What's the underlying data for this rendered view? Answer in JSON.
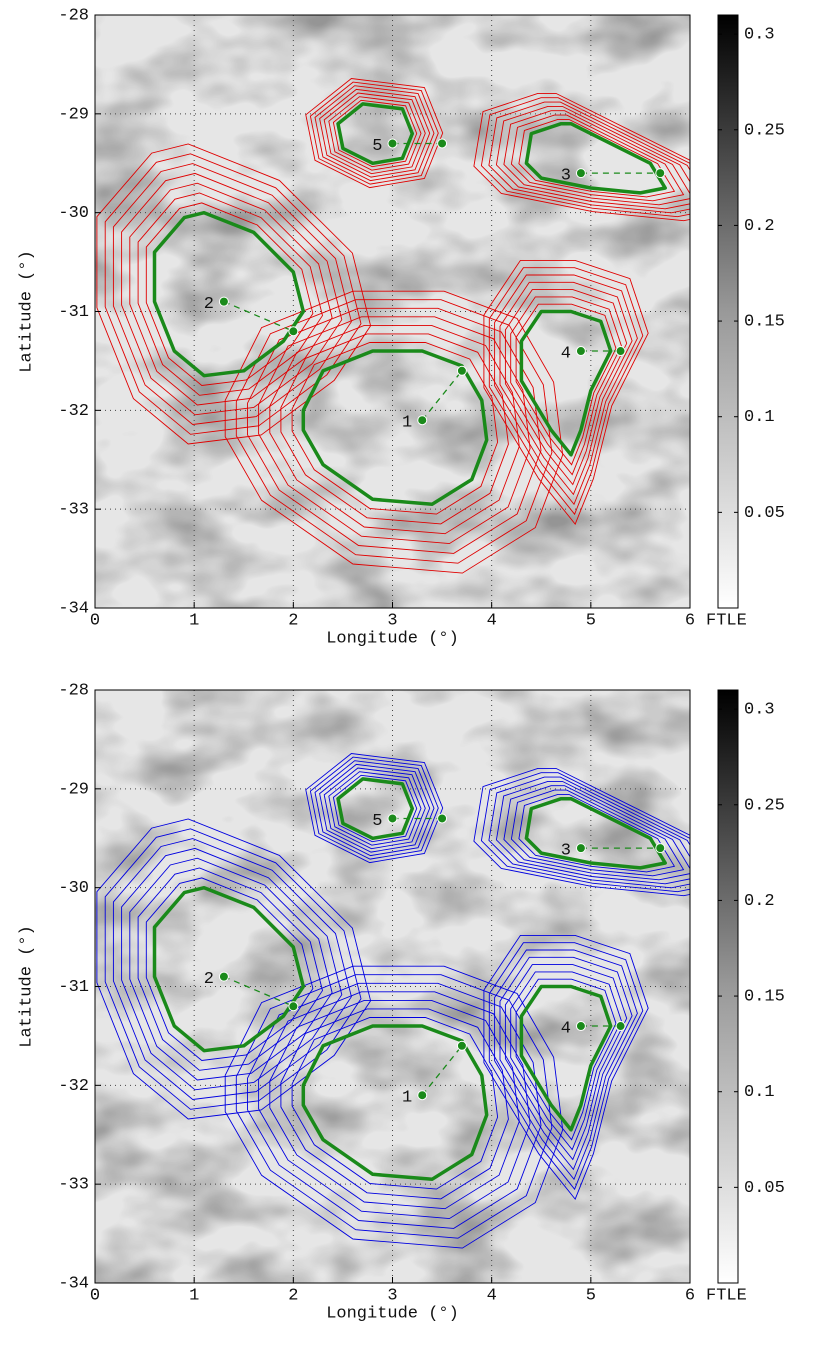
{
  "chart_data": [
    {
      "type": "ftle-map",
      "line_color": "#e00000",
      "boundary_color": "#1a8a1a",
      "x_label": "Longitude (°)",
      "y_label": "Latitude (°)",
      "colorbar_label": "FTLE",
      "xlim": [
        0,
        6
      ],
      "ylim": [
        -34,
        -28
      ],
      "xticks": [
        0,
        1,
        2,
        3,
        4,
        5,
        6
      ],
      "yticks": [
        -34,
        -33,
        -32,
        -31,
        -30,
        -29,
        -28
      ],
      "clim": [
        0,
        0.31
      ],
      "cticks": [
        0.05,
        0.1,
        0.15,
        0.2,
        0.25,
        0.3
      ],
      "grid": true,
      "series": [
        {
          "name": "1",
          "center": [
            3.3,
            -32.1
          ],
          "point": [
            3.7,
            -31.6
          ],
          "boundary_x": [
            2.1,
            2.3,
            2.8,
            3.3,
            3.7,
            3.9,
            3.95,
            3.8,
            3.4,
            2.8,
            2.3,
            2.1
          ],
          "boundary_y": [
            -32.0,
            -31.6,
            -31.4,
            -31.4,
            -31.55,
            -31.9,
            -32.3,
            -32.7,
            -32.95,
            -32.9,
            -32.55,
            -32.2
          ]
        },
        {
          "name": "2",
          "center": [
            1.3,
            -30.9
          ],
          "point": [
            2.0,
            -31.2
          ],
          "boundary_x": [
            0.6,
            0.9,
            1.1,
            1.6,
            2.0,
            2.1,
            1.9,
            1.5,
            1.1,
            0.8,
            0.6
          ],
          "boundary_y": [
            -30.4,
            -30.05,
            -30.0,
            -30.2,
            -30.6,
            -31.0,
            -31.3,
            -31.6,
            -31.65,
            -31.4,
            -30.9
          ]
        },
        {
          "name": "3",
          "center": [
            4.9,
            -29.6
          ],
          "point": [
            5.7,
            -29.6
          ],
          "boundary_x": [
            4.35,
            4.4,
            4.7,
            4.8,
            5.2,
            5.6,
            5.75,
            5.5,
            5.0,
            4.5
          ],
          "boundary_y": [
            -29.5,
            -29.2,
            -29.1,
            -29.1,
            -29.3,
            -29.5,
            -29.75,
            -29.8,
            -29.75,
            -29.65
          ]
        },
        {
          "name": "4",
          "center": [
            4.9,
            -31.4
          ],
          "point": [
            5.3,
            -31.4
          ],
          "boundary_x": [
            4.3,
            4.5,
            4.8,
            5.1,
            5.2,
            5.0,
            4.9,
            4.8,
            4.6,
            4.3
          ],
          "boundary_y": [
            -31.3,
            -31.0,
            -31.0,
            -31.1,
            -31.4,
            -31.8,
            -32.2,
            -32.45,
            -32.2,
            -31.7
          ]
        },
        {
          "name": "5",
          "center": [
            3.0,
            -29.3
          ],
          "point": [
            3.5,
            -29.3
          ],
          "boundary_x": [
            2.45,
            2.7,
            3.1,
            3.2,
            3.1,
            2.8,
            2.5
          ],
          "boundary_y": [
            -29.1,
            -28.9,
            -28.95,
            -29.2,
            -29.45,
            -29.5,
            -29.35
          ]
        }
      ]
    },
    {
      "type": "ftle-map",
      "line_color": "#0000e0",
      "boundary_color": "#1a8a1a",
      "x_label": "Longitude (°)",
      "y_label": "Latitude (°)",
      "colorbar_label": "FTLE",
      "xlim": [
        0,
        6
      ],
      "ylim": [
        -34,
        -28
      ],
      "xticks": [
        0,
        1,
        2,
        3,
        4,
        5,
        6
      ],
      "yticks": [
        -34,
        -33,
        -32,
        -31,
        -30,
        -29,
        -28
      ],
      "clim": [
        0,
        0.31
      ],
      "cticks": [
        0.05,
        0.1,
        0.15,
        0.2,
        0.25,
        0.3
      ],
      "grid": true,
      "series": [
        {
          "name": "1",
          "center": [
            3.3,
            -32.1
          ],
          "point": [
            3.7,
            -31.6
          ],
          "boundary_x": [
            2.1,
            2.3,
            2.8,
            3.3,
            3.7,
            3.9,
            3.95,
            3.8,
            3.4,
            2.8,
            2.3,
            2.1
          ],
          "boundary_y": [
            -32.0,
            -31.6,
            -31.4,
            -31.4,
            -31.55,
            -31.9,
            -32.3,
            -32.7,
            -32.95,
            -32.9,
            -32.55,
            -32.2
          ]
        },
        {
          "name": "2",
          "center": [
            1.3,
            -30.9
          ],
          "point": [
            2.0,
            -31.2
          ],
          "boundary_x": [
            0.6,
            0.9,
            1.1,
            1.6,
            2.0,
            2.1,
            1.9,
            1.5,
            1.1,
            0.8,
            0.6
          ],
          "boundary_y": [
            -30.4,
            -30.05,
            -30.0,
            -30.2,
            -30.6,
            -31.0,
            -31.3,
            -31.6,
            -31.65,
            -31.4,
            -30.9
          ]
        },
        {
          "name": "3",
          "center": [
            4.9,
            -29.6
          ],
          "point": [
            5.7,
            -29.6
          ],
          "boundary_x": [
            4.35,
            4.4,
            4.7,
            4.8,
            5.2,
            5.6,
            5.75,
            5.5,
            5.0,
            4.5
          ],
          "boundary_y": [
            -29.5,
            -29.2,
            -29.1,
            -29.1,
            -29.3,
            -29.5,
            -29.75,
            -29.8,
            -29.75,
            -29.65
          ]
        },
        {
          "name": "4",
          "center": [
            4.9,
            -31.4
          ],
          "point": [
            5.3,
            -31.4
          ],
          "boundary_x": [
            4.3,
            4.5,
            4.8,
            5.1,
            5.2,
            5.0,
            4.9,
            4.8,
            4.6,
            4.3
          ],
          "boundary_y": [
            -31.3,
            -31.0,
            -31.0,
            -31.1,
            -31.4,
            -31.8,
            -32.2,
            -32.45,
            -32.2,
            -31.7
          ]
        },
        {
          "name": "5",
          "center": [
            3.0,
            -29.3
          ],
          "point": [
            3.5,
            -29.3
          ],
          "boundary_x": [
            2.45,
            2.7,
            3.1,
            3.2,
            3.1,
            2.8,
            2.5
          ],
          "boundary_y": [
            -29.1,
            -28.9,
            -28.95,
            -29.2,
            -29.45,
            -29.5,
            -29.35
          ]
        }
      ]
    }
  ]
}
